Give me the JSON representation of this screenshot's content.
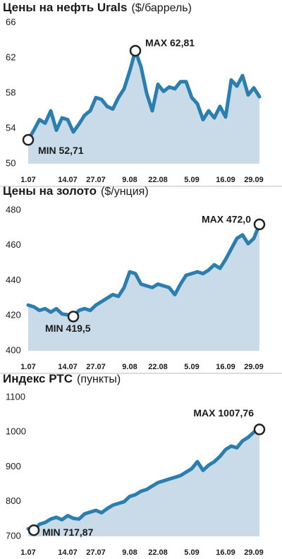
{
  "chart_data": [
    {
      "type": "line",
      "title": "Цены на нефть Urals",
      "units": "($/баррель)",
      "color": "#2b7fae",
      "fill": "#c9dbe8",
      "categories": [
        "1.07",
        null,
        null,
        null,
        null,
        null,
        null,
        "14.07",
        null,
        null,
        null,
        null,
        "27.07",
        null,
        null,
        null,
        null,
        null,
        "9.08",
        null,
        null,
        null,
        null,
        "22.08",
        null,
        null,
        null,
        null,
        null,
        "5.09",
        null,
        null,
        null,
        null,
        null,
        "16.09",
        null,
        null,
        null,
        null,
        "29.09",
        null
      ],
      "values": [
        52.71,
        53.8,
        55,
        54.6,
        56,
        53.8,
        55.2,
        55,
        53.6,
        54.5,
        55.5,
        56,
        57.5,
        57.3,
        56.5,
        56.2,
        57.5,
        58.5,
        60.5,
        62.81,
        61,
        58,
        56,
        59,
        58.2,
        58.7,
        58.5,
        59.3,
        59.3,
        57.5,
        56.8,
        55,
        56,
        55.2,
        56.5,
        55.3,
        59.5,
        58.8,
        60,
        57.8,
        58.6,
        57.6
      ],
      "ylim": [
        50,
        66
      ],
      "yticks": [
        50,
        54,
        58,
        62,
        66
      ],
      "grid": false,
      "max_label": "MAX 62,81",
      "min_label": "MIN 52,71"
    },
    {
      "type": "line",
      "title": "Цены на золото",
      "units": "($/унция)",
      "color": "#2b7fae",
      "fill": "#c9dbe8",
      "categories": [
        "1.07",
        null,
        null,
        null,
        null,
        null,
        null,
        "14.07",
        null,
        null,
        null,
        null,
        "27.07",
        null,
        null,
        null,
        null,
        null,
        "9.08",
        null,
        null,
        null,
        null,
        "22.08",
        null,
        null,
        null,
        null,
        null,
        "5.09",
        null,
        null,
        null,
        null,
        null,
        "16.09",
        null,
        null,
        null,
        null,
        "29.09",
        null
      ],
      "values": [
        426,
        425,
        423,
        424,
        422,
        424,
        421,
        420.5,
        419.5,
        423,
        424,
        423,
        426,
        428,
        430,
        432,
        431,
        436,
        445,
        444,
        438,
        437,
        436,
        438,
        437,
        436,
        432,
        438,
        443,
        444,
        445,
        444,
        446,
        449,
        447,
        452,
        458,
        464,
        466,
        461,
        464,
        472.0
      ],
      "ylim": [
        400,
        480
      ],
      "yticks": [
        400,
        420,
        440,
        460,
        480
      ],
      "grid": false,
      "max_label": "MAX 472,0",
      "min_label": "MIN 419,5"
    },
    {
      "type": "line",
      "title": "Индекс РТС",
      "units": "(пункты)",
      "color": "#2b7fae",
      "fill": "#c9dbe8",
      "categories": [
        "1.07",
        null,
        null,
        null,
        null,
        null,
        null,
        "14.07",
        null,
        null,
        null,
        null,
        "27.07",
        null,
        null,
        null,
        null,
        null,
        "9.08",
        null,
        null,
        null,
        null,
        "22.08",
        null,
        null,
        null,
        null,
        null,
        "5.09",
        null,
        null,
        null,
        null,
        null,
        "16.09",
        null,
        null,
        null,
        null,
        "29.09",
        null
      ],
      "values": [
        722,
        717.87,
        735,
        740,
        750,
        755,
        748,
        760,
        752,
        750,
        765,
        770,
        775,
        768,
        780,
        790,
        795,
        800,
        815,
        820,
        830,
        835,
        845,
        855,
        860,
        865,
        870,
        875,
        885,
        895,
        915,
        890,
        905,
        915,
        930,
        950,
        960,
        955,
        975,
        985,
        1000,
        1007.76
      ],
      "ylim": [
        700,
        1100
      ],
      "yticks": [
        700,
        800,
        900,
        1000,
        1100
      ],
      "grid": false,
      "max_label": "MAX 1007,76",
      "min_label": "MIN 717,87"
    }
  ]
}
